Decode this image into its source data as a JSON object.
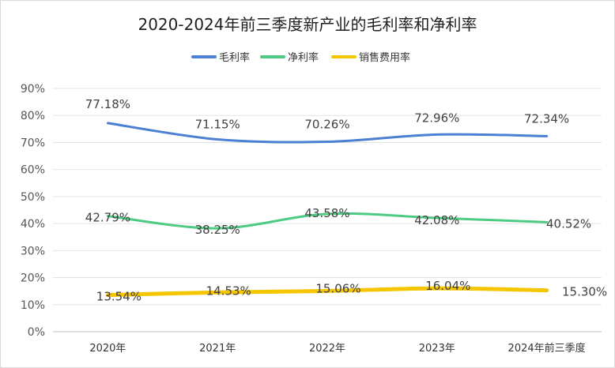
{
  "chart_data": {
    "type": "line",
    "title": "2020-2024年前三季度新产业的毛利率和净利率",
    "categories": [
      "2020年",
      "2021年",
      "2022年",
      "2023年",
      "2024年前三季度"
    ],
    "ylim": [
      0,
      90
    ],
    "yticks": [
      0,
      10,
      20,
      30,
      40,
      50,
      60,
      70,
      80,
      90
    ],
    "ytick_labels": [
      "0%",
      "10%",
      "20%",
      "30%",
      "40%",
      "50%",
      "60%",
      "70%",
      "80%",
      "90%"
    ],
    "grid": true,
    "legend": "top-center",
    "series": [
      {
        "name": "毛利率",
        "values": [
          77.18,
          71.15,
          70.26,
          72.96,
          72.34
        ],
        "labels": [
          "77.18%",
          "71.15%",
          "70.26%",
          "72.96%",
          "72.34%"
        ],
        "color": "#4a7fd4"
      },
      {
        "name": "净利率",
        "values": [
          42.79,
          38.25,
          43.58,
          42.08,
          40.52
        ],
        "labels": [
          "42.79%",
          "38.25%",
          "43.58%",
          "42.08%",
          "40.52%"
        ],
        "color": "#4ecb83"
      },
      {
        "name": "销售费用率",
        "values": [
          13.54,
          14.53,
          15.06,
          16.04,
          15.3
        ],
        "labels": [
          "13.54%",
          "14.53%",
          "15.06%",
          "16.04%",
          "15.30%"
        ],
        "color": "#f5c500"
      }
    ]
  }
}
